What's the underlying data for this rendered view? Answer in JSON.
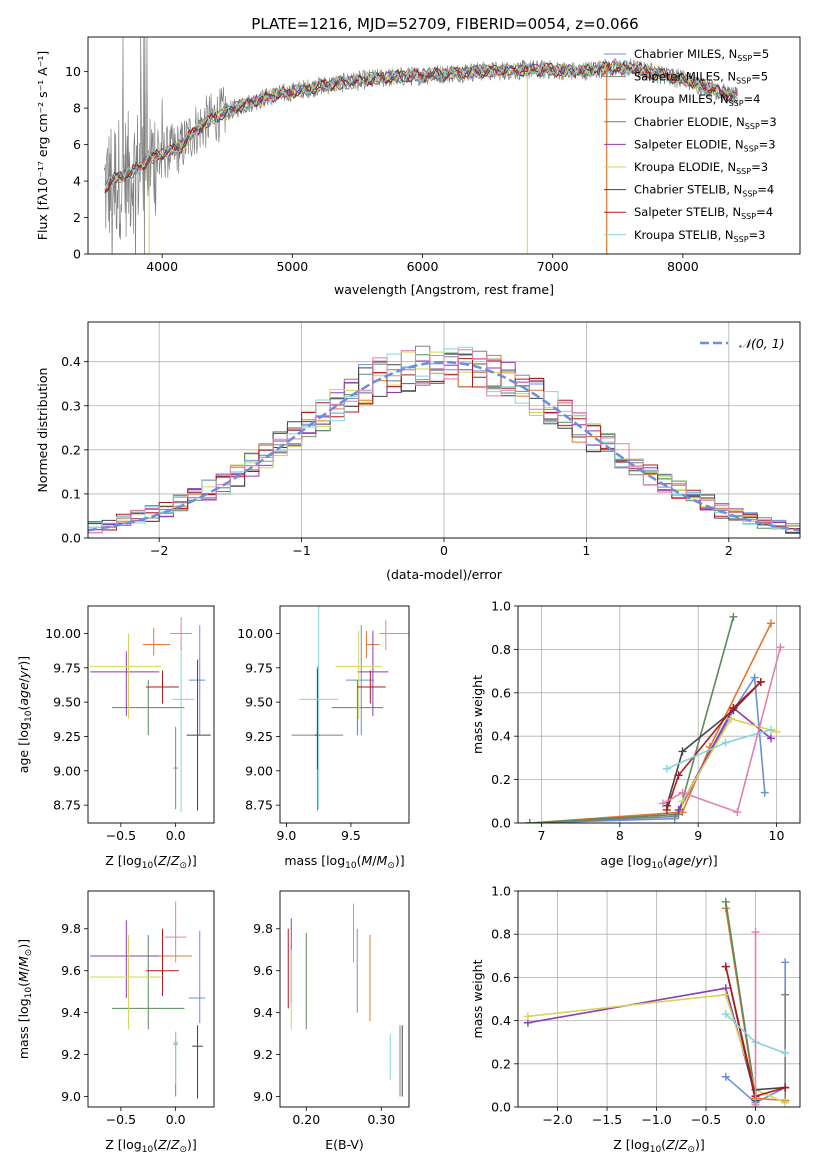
{
  "title": "PLATE=1216, MJD=52709, FIBERID=0054, z=0.066",
  "colors": [
    "#6a8fdc",
    "#808080",
    "#e0772a",
    "#5a8a5a",
    "#8e3bb6",
    "#d6d35a",
    "#444444",
    "#b3181e",
    "#7fd6dc",
    "#e07fb0"
  ],
  "chart_data": [
    {
      "id": "spectrum",
      "type": "line",
      "xlabel": "wavelength [Angstrom, rest frame]",
      "ylabel": "Flux [fλ10⁻¹⁷ erg cm⁻² s⁻¹ A⁻¹]",
      "xlim": [
        3430,
        8900
      ],
      "ylim": [
        0,
        11.9
      ],
      "xticks": [
        4000,
        5000,
        6000,
        7000,
        8000
      ],
      "yticks": [
        0,
        2,
        4,
        6,
        8,
        10
      ],
      "grid": false,
      "legend_position": "top-right",
      "continuum": {
        "x": [
          3550,
          3650,
          3750,
          3850,
          3950,
          4050,
          4150,
          4250,
          4400,
          4600,
          4800,
          5000,
          5200,
          5400,
          5600,
          5800,
          6000,
          6200,
          6400,
          6600,
          6800,
          7000,
          7200,
          7400,
          7600,
          7800,
          8000,
          8200,
          8400
        ],
        "y": [
          3.6,
          4.2,
          4.4,
          4.9,
          5.4,
          5.6,
          5.9,
          6.8,
          7.5,
          8.1,
          8.6,
          8.9,
          9.2,
          9.4,
          9.6,
          9.7,
          9.8,
          9.9,
          10.0,
          10.05,
          10.1,
          10.1,
          10.0,
          10.2,
          10.2,
          9.9,
          9.6,
          9.1,
          8.6
        ]
      },
      "series": [
        {
          "name": "Chabrier MILES, N_SSP=5",
          "label_main": "Chabrier MILES, N",
          "label_sub": "SSP",
          "label_tail": "=5"
        },
        {
          "name": "Salpeter MILES, N_SSP=5",
          "label_main": "Salpeter MILES, N",
          "label_sub": "SSP",
          "label_tail": "=5"
        },
        {
          "name": "Kroupa MILES, N_SSP=4",
          "label_main": "Kroupa MILES, N",
          "label_sub": "SSP",
          "label_tail": "=4"
        },
        {
          "name": "Chabrier ELODIE, N_SSP=3",
          "label_main": "Chabrier ELODIE, N",
          "label_sub": "SSP",
          "label_tail": "=3"
        },
        {
          "name": "Salpeter ELODIE, N_SSP=3",
          "label_main": "Salpeter ELODIE, N",
          "label_sub": "SSP",
          "label_tail": "=3"
        },
        {
          "name": "Kroupa ELODIE, N_SSP=3",
          "label_main": "Kroupa ELODIE, N",
          "label_sub": "SSP",
          "label_tail": "=3"
        },
        {
          "name": "Chabrier STELIB, N_SSP=4",
          "label_main": "Chabrier STELIB, N",
          "label_sub": "SSP",
          "label_tail": "=4"
        },
        {
          "name": "Salpeter STELIB, N_SSP=4",
          "label_main": "Salpeter STELIB, N",
          "label_sub": "SSP",
          "label_tail": "=4"
        },
        {
          "name": "Kroupa STELIB, N_SSP=3",
          "label_main": "Kroupa STELIB, N",
          "label_sub": "SSP",
          "label_tail": "=3"
        }
      ]
    },
    {
      "id": "residuals",
      "type": "line",
      "xlabel": "(data-model)/error",
      "ylabel": "Normed distribution",
      "xlim": [
        -2.5,
        2.5
      ],
      "ylim": [
        0,
        0.49
      ],
      "xticks": [
        -2,
        -1,
        0,
        1,
        2
      ],
      "yticks": [
        0.0,
        0.1,
        0.2,
        0.3,
        0.4
      ],
      "grid": true,
      "legend": "𝒩(0, 1)",
      "legend_position": "top-right",
      "bin_width": 0.1,
      "profile_x": [
        -2.5,
        -2.0,
        -1.5,
        -1.0,
        -0.5,
        0.0,
        0.5,
        1.0,
        1.5,
        2.0,
        2.5
      ],
      "profile_y": [
        0.018,
        0.06,
        0.13,
        0.245,
        0.36,
        0.4,
        0.355,
        0.24,
        0.13,
        0.055,
        0.02
      ]
    },
    {
      "id": "age_vs_Z",
      "type": "scatter",
      "xlabel": "Z [log10(Z/Z⊙)]",
      "ylabel": "age  [log10(age/yr)]",
      "xlim": [
        -0.8,
        0.35
      ],
      "ylim": [
        8.62,
        10.2
      ],
      "xticks": [
        -0.5,
        0.0
      ],
      "yticks": [
        8.75,
        9.0,
        9.25,
        9.5,
        9.75,
        10.0
      ],
      "points": [
        {
          "x": 0.22,
          "y": 9.66,
          "xerr": [
            0.1,
            0.05
          ],
          "yerr": [
            0.4,
            0.4
          ]
        },
        {
          "x": 0.0,
          "y": 9.02,
          "xerr": [
            0.02,
            0.02
          ],
          "yerr": [
            0.3,
            0.3
          ]
        },
        {
          "x": -0.2,
          "y": 9.92,
          "xerr": [
            0.1,
            0.15
          ],
          "yerr": [
            0.08,
            0.12
          ]
        },
        {
          "x": -0.25,
          "y": 9.46,
          "xerr": [
            0.33,
            0.33
          ],
          "yerr": [
            0.2,
            0.2
          ]
        },
        {
          "x": -0.45,
          "y": 9.72,
          "xerr": [
            0.33,
            0.3
          ],
          "yerr": [
            0.32,
            0.15
          ]
        },
        {
          "x": -0.43,
          "y": 9.76,
          "xerr": [
            0.35,
            0.3
          ],
          "yerr": [
            0.38,
            0.24
          ]
        },
        {
          "x": 0.2,
          "y": 9.26,
          "xerr": [
            0.1,
            0.12
          ],
          "yerr": [
            0.55,
            0.55
          ]
        },
        {
          "x": -0.12,
          "y": 9.61,
          "xerr": [
            0.15,
            0.15
          ],
          "yerr": [
            0.12,
            0.12
          ]
        },
        {
          "x": 0.05,
          "y": 9.52,
          "xerr": [
            0.08,
            0.12
          ],
          "yerr": [
            0.82,
            0.4
          ]
        },
        {
          "x": 0.05,
          "y": 10.0,
          "xerr": [
            0.1,
            0.1
          ],
          "yerr": [
            0.12,
            0.12
          ]
        }
      ]
    },
    {
      "id": "age_vs_mass",
      "type": "scatter",
      "xlabel": "mass [log10(M/M⊙)]",
      "ylabel": "",
      "xlim": [
        8.95,
        9.95
      ],
      "ylim": [
        8.62,
        10.2
      ],
      "xticks": [
        9.0,
        9.5
      ],
      "yticks": [
        8.75,
        9.0,
        9.25,
        9.5,
        9.75,
        10.0
      ],
      "points": [
        {
          "x": 9.58,
          "y": 9.66,
          "xerr": [
            0.12,
            0.1
          ],
          "yerr": [
            0.4,
            0.4
          ]
        },
        {
          "x": 9.24,
          "y": 9.26,
          "xerr": [
            0.2,
            0.2
          ],
          "yerr": [
            0.55,
            0.5
          ]
        },
        {
          "x": 9.62,
          "y": 9.92,
          "xerr": [
            0.0,
            0.1
          ],
          "yerr": [
            0.1,
            0.1
          ]
        },
        {
          "x": 9.55,
          "y": 9.46,
          "xerr": [
            0.2,
            0.2
          ],
          "yerr": [
            0.2,
            0.2
          ]
        },
        {
          "x": 9.67,
          "y": 9.72,
          "xerr": [
            0.12,
            0.12
          ],
          "yerr": [
            0.32,
            0.3
          ]
        },
        {
          "x": 9.56,
          "y": 9.76,
          "xerr": [
            0.18,
            0.18
          ],
          "yerr": [
            0.38,
            0.26
          ]
        },
        {
          "x": 9.24,
          "y": 9.26,
          "xerr": [
            0.02,
            0.02
          ],
          "yerr": [
            0.25,
            0.48
          ]
        },
        {
          "x": 9.65,
          "y": 9.61,
          "xerr": [
            0.1,
            0.12
          ],
          "yerr": [
            0.12,
            0.12
          ]
        },
        {
          "x": 9.25,
          "y": 9.52,
          "xerr": [
            0.15,
            0.15
          ],
          "yerr": [
            0.8,
            0.8
          ]
        },
        {
          "x": 9.77,
          "y": 10.0,
          "xerr": [
            0.05,
            0.2
          ],
          "yerr": [
            0.12,
            0.1
          ]
        }
      ]
    },
    {
      "id": "weight_vs_age",
      "type": "line",
      "xlabel": "age  [log10(age/yr)]",
      "ylabel": "mass weight",
      "xlim": [
        6.7,
        10.3
      ],
      "ylim": [
        0,
        1.0
      ],
      "xticks": [
        7,
        8,
        9,
        10
      ],
      "yticks": [
        0.0,
        0.2,
        0.4,
        0.6,
        0.8,
        1.0
      ],
      "grid": true,
      "series": [
        {
          "x": [
            6.85,
            8.7,
            9.45,
            9.72,
            9.85
          ],
          "y": [
            0.0,
            0.02,
            0.52,
            0.67,
            0.14
          ]
        },
        {
          "x": [
            6.85,
            8.7,
            9.45,
            9.8
          ],
          "y": [
            0.0,
            0.03,
            0.53,
            0.65
          ]
        },
        {
          "x": [
            6.85,
            8.8,
            9.15,
            9.93
          ],
          "y": [
            0.0,
            0.05,
            0.35,
            0.92
          ]
        },
        {
          "x": [
            6.85,
            8.75,
            9.45
          ],
          "y": [
            0.0,
            0.04,
            0.95
          ]
        },
        {
          "x": [
            8.75,
            9.45,
            9.93
          ],
          "y": [
            0.06,
            0.53,
            0.39
          ]
        },
        {
          "x": [
            8.8,
            9.42,
            10.0
          ],
          "y": [
            0.1,
            0.48,
            0.42
          ]
        },
        {
          "x": [
            8.6,
            8.8,
            9.45,
            9.8
          ],
          "y": [
            0.08,
            0.33,
            0.52,
            0.65
          ]
        },
        {
          "x": [
            8.6,
            8.75,
            9.45,
            9.8
          ],
          "y": [
            0.06,
            0.22,
            0.53,
            0.65
          ]
        },
        {
          "x": [
            8.6,
            9.35,
            9.93
          ],
          "y": [
            0.25,
            0.37,
            0.43
          ]
        },
        {
          "x": [
            8.55,
            8.8,
            9.5,
            10.05
          ],
          "y": [
            0.09,
            0.14,
            0.05,
            0.81
          ]
        }
      ]
    },
    {
      "id": "mass_vs_Z",
      "type": "scatter",
      "xlabel": "Z [log10(Z/Z⊙)]",
      "ylabel": "mass [log10(M/M⊙)]",
      "xlim": [
        -0.8,
        0.35
      ],
      "ylim": [
        8.95,
        9.98
      ],
      "xticks": [
        -0.5,
        0.0
      ],
      "yticks": [
        9.0,
        9.2,
        9.4,
        9.6,
        9.8
      ],
      "points": [
        {
          "x": 0.22,
          "y": 9.47,
          "xerr": [
            0.1,
            0.05
          ],
          "yerr": [
            0.12,
            0.32
          ]
        },
        {
          "x": 0.0,
          "y": 9.25,
          "xerr": [
            0.02,
            0.02
          ],
          "yerr": [
            0.25,
            0.05
          ]
        },
        {
          "x": -0.05,
          "y": 9.67,
          "xerr": [
            0.2,
            0.2
          ],
          "yerr": [
            0.0,
            0.0
          ]
        },
        {
          "x": -0.25,
          "y": 9.42,
          "xerr": [
            0.33,
            0.33
          ],
          "yerr": [
            0.1,
            0.35
          ]
        },
        {
          "x": -0.45,
          "y": 9.67,
          "xerr": [
            0.33,
            0.3
          ],
          "yerr": [
            0.2,
            0.17
          ]
        },
        {
          "x": -0.43,
          "y": 9.57,
          "xerr": [
            0.35,
            0.3
          ],
          "yerr": [
            0.25,
            0.2
          ]
        },
        {
          "x": 0.2,
          "y": 9.24,
          "xerr": [
            0.05,
            0.05
          ],
          "yerr": [
            0.25,
            0.1
          ]
        },
        {
          "x": -0.12,
          "y": 9.6,
          "xerr": [
            0.15,
            0.15
          ],
          "yerr": [
            0.12,
            0.2
          ]
        },
        {
          "x": 0.0,
          "y": 9.26,
          "xerr": [
            0.02,
            0.02
          ],
          "yerr": [
            0.2,
            0.05
          ]
        },
        {
          "x": 0.0,
          "y": 9.76,
          "xerr": [
            0.1,
            0.1
          ],
          "yerr": [
            0.12,
            0.17
          ]
        }
      ]
    },
    {
      "id": "mass_vs_ebv",
      "type": "scatter",
      "xlabel": "E(B-V)",
      "ylabel": "",
      "xlim": [
        0.165,
        0.337
      ],
      "ylim": [
        8.95,
        9.98
      ],
      "xticks": [
        0.2,
        0.3
      ],
      "yticks": [
        9.0,
        9.2,
        9.4,
        9.6,
        9.8
      ],
      "points": [
        {
          "x": 0.268,
          "y": 9.6,
          "xerr": [
            0.0,
            0.0
          ],
          "yerr": [
            0.2,
            0.2
          ]
        },
        {
          "x": 0.325,
          "y": 9.16,
          "xerr": [
            0.0,
            0.0
          ],
          "yerr": [
            0.16,
            0.18
          ]
        },
        {
          "x": 0.285,
          "y": 9.6,
          "xerr": [
            0.0,
            0.0
          ],
          "yerr": [
            0.24,
            0.17
          ]
        },
        {
          "x": 0.2,
          "y": 9.55,
          "xerr": [
            0.0,
            0.0
          ],
          "yerr": [
            0.23,
            0.23
          ]
        },
        {
          "x": 0.18,
          "y": 9.6,
          "xerr": [
            0.0,
            0.0
          ],
          "yerr": [
            0.15,
            0.25
          ]
        },
        {
          "x": 0.18,
          "y": 9.5,
          "xerr": [
            0.0,
            0.0
          ],
          "yerr": [
            0.18,
            0.2
          ]
        },
        {
          "x": 0.328,
          "y": 9.17,
          "xerr": [
            0.0,
            0.0
          ],
          "yerr": [
            0.17,
            0.17
          ]
        },
        {
          "x": 0.176,
          "y": 9.6,
          "xerr": [
            0.0,
            0.0
          ],
          "yerr": [
            0.18,
            0.2
          ]
        },
        {
          "x": 0.312,
          "y": 9.2,
          "xerr": [
            0.0,
            0.0
          ],
          "yerr": [
            0.12,
            0.1
          ]
        },
        {
          "x": 0.263,
          "y": 9.78,
          "xerr": [
            0.0,
            0.0
          ],
          "yerr": [
            0.14,
            0.14
          ]
        }
      ]
    },
    {
      "id": "weight_vs_Z",
      "type": "line",
      "xlabel": "Z [log10(Z/Z⊙)]",
      "ylabel": "mass weight",
      "xlim": [
        -2.4,
        0.45
      ],
      "ylim": [
        0,
        1.0
      ],
      "xticks": [
        -2.0,
        -1.5,
        -1.0,
        -0.5,
        0.0
      ],
      "yticks": [
        0.0,
        0.2,
        0.4,
        0.6,
        0.8,
        1.0
      ],
      "grid": true,
      "series": [
        {
          "x": [
            -0.3,
            0.0,
            0.3,
            0.3
          ],
          "y": [
            0.14,
            0.02,
            0.09,
            0.67
          ]
        },
        {
          "x": [
            0.3,
            0.3
          ],
          "y": [
            0.52,
            0.03
          ]
        },
        {
          "x": [
            -0.3,
            0.0,
            0.3
          ],
          "y": [
            0.92,
            0.04,
            0.03
          ]
        },
        {
          "x": [
            -0.3,
            0.0
          ],
          "y": [
            0.95,
            0.05
          ]
        },
        {
          "x": [
            -2.3,
            -0.3,
            0.0
          ],
          "y": [
            0.39,
            0.55,
            0.05
          ]
        },
        {
          "x": [
            -2.3,
            -0.3,
            0.0,
            0.3
          ],
          "y": [
            0.42,
            0.52,
            0.08,
            0.02
          ]
        },
        {
          "x": [
            -0.3,
            0.0,
            0.0,
            0.3
          ],
          "y": [
            0.65,
            0.03,
            0.08,
            0.09
          ]
        },
        {
          "x": [
            -0.3,
            0.0,
            0.3
          ],
          "y": [
            0.65,
            0.05,
            0.09
          ]
        },
        {
          "x": [
            -0.3,
            0.0,
            0.3
          ],
          "y": [
            0.43,
            0.3,
            0.25
          ]
        },
        {
          "x": [
            0.0,
            0.0
          ],
          "y": [
            0.81,
            0.01
          ]
        }
      ]
    }
  ]
}
